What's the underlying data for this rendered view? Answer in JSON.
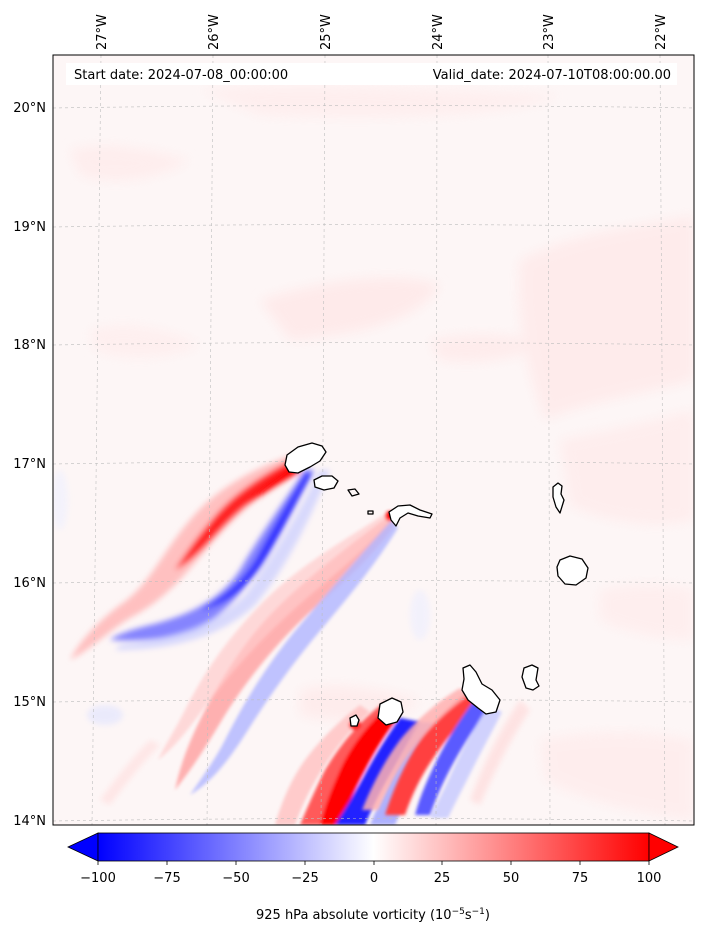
{
  "map": {
    "start_label": "Start date: 2024-07-08_00:00:00",
    "valid_label": "Valid_date: 2024-07-10T08:00:00.00",
    "lon_ticks": [
      "27°W",
      "26°W",
      "25°W",
      "24°W",
      "23°W",
      "22°W"
    ],
    "lat_ticks": [
      "20°N",
      "19°N",
      "18°N",
      "17°N",
      "16°N",
      "15°N",
      "14°N"
    ],
    "gridlines": true
  },
  "colorbar": {
    "ticks": [
      "−100",
      "−75",
      "−50",
      "−25",
      "0",
      "25",
      "50",
      "75",
      "100"
    ],
    "title": "925 hPa absolute vorticity",
    "title_unit_base": "(10",
    "title_unit_exp1": "−5",
    "title_unit_mid": "s",
    "title_unit_exp2": "−1",
    "title_unit_end": ")",
    "range": [
      -100,
      100
    ],
    "extend": "both",
    "colors": {
      "min": "#0000ff",
      "zero": "#ffffff",
      "max": "#ff0000"
    }
  },
  "islands": [
    "island-santo-antao",
    "island-sao-vicente",
    "island-santa-luzia",
    "island-sao-nicolau",
    "island-sal",
    "island-boa-vista",
    "island-maio",
    "island-santiago",
    "island-fogo",
    "island-brava"
  ]
}
